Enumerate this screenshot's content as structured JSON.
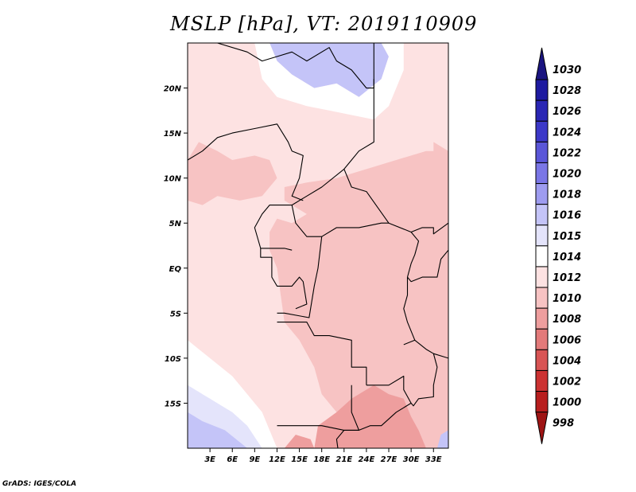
{
  "chart_data": {
    "type": "heatmap",
    "title": "MSLP [hPa], VT: 2019110909",
    "variable": "MSLP",
    "units": "hPa",
    "valid_time": "2019110909",
    "xlabel": "",
    "ylabel": "",
    "lon_range": [
      0,
      35
    ],
    "lat_range": [
      -20,
      25
    ],
    "x_ticks": [
      {
        "value": 3,
        "label": "3E"
      },
      {
        "value": 6,
        "label": "6E"
      },
      {
        "value": 9,
        "label": "9E"
      },
      {
        "value": 12,
        "label": "12E"
      },
      {
        "value": 15,
        "label": "15E"
      },
      {
        "value": 18,
        "label": "18E"
      },
      {
        "value": 21,
        "label": "21E"
      },
      {
        "value": 24,
        "label": "24E"
      },
      {
        "value": 27,
        "label": "27E"
      },
      {
        "value": 30,
        "label": "30E"
      },
      {
        "value": 33,
        "label": "33E"
      }
    ],
    "y_ticks": [
      {
        "value": 20,
        "label": "20N"
      },
      {
        "value": 15,
        "label": "15N"
      },
      {
        "value": 10,
        "label": "10N"
      },
      {
        "value": 5,
        "label": "5N"
      },
      {
        "value": 0,
        "label": "EQ"
      },
      {
        "value": -5,
        "label": "5S"
      },
      {
        "value": -10,
        "label": "10S"
      },
      {
        "value": -15,
        "label": "15S"
      }
    ],
    "colorbar": [
      {
        "label": "1030",
        "color": "#1a1480"
      },
      {
        "label": "1028",
        "color": "#1e1aa0"
      },
      {
        "label": "1026",
        "color": "#2a26b4"
      },
      {
        "label": "1024",
        "color": "#3c38c8"
      },
      {
        "label": "1022",
        "color": "#5a56d8"
      },
      {
        "label": "1020",
        "color": "#7a76e6"
      },
      {
        "label": "1018",
        "color": "#9e9cf0"
      },
      {
        "label": "1016",
        "color": "#c4c4f8"
      },
      {
        "label": "1015",
        "color": "#e4e4fb"
      },
      {
        "label": "1014",
        "color": "#ffffff"
      },
      {
        "label": "1012",
        "color": "#fde2e2"
      },
      {
        "label": "1010",
        "color": "#f7c3c3"
      },
      {
        "label": "1008",
        "color": "#ee9e9e"
      },
      {
        "label": "1006",
        "color": "#e37a7a"
      },
      {
        "label": "1004",
        "color": "#d85454"
      },
      {
        "label": "1002",
        "color": "#cc3232"
      },
      {
        "label": "1000",
        "color": "#b81e1e"
      },
      {
        "label": "998",
        "color": "#9e1414"
      }
    ],
    "colorbar_extend": "both",
    "regions": [
      {
        "name": "blue-high-north",
        "value": 1016,
        "pts": [
          [
            14,
            25
          ],
          [
            26,
            25
          ],
          [
            27,
            23.5
          ],
          [
            26,
            21
          ],
          [
            23,
            19
          ],
          [
            20,
            20.5
          ],
          [
            17,
            20
          ],
          [
            14,
            21.5
          ],
          [
            12,
            23
          ],
          [
            11,
            25
          ]
        ]
      },
      {
        "name": "white-north",
        "value": 1014,
        "pts": [
          [
            11,
            25
          ],
          [
            12,
            23
          ],
          [
            14,
            21.5
          ],
          [
            17,
            20
          ],
          [
            20,
            20.5
          ],
          [
            23,
            19
          ],
          [
            26,
            21
          ],
          [
            27,
            23.5
          ],
          [
            26,
            25
          ],
          [
            29,
            25
          ],
          [
            29,
            22
          ],
          [
            27,
            18
          ],
          [
            25,
            16.5
          ],
          [
            22,
            17
          ],
          [
            19,
            17.5
          ],
          [
            16,
            18
          ],
          [
            12,
            19
          ],
          [
            10,
            21
          ],
          [
            9,
            25
          ]
        ]
      },
      {
        "name": "pink-north-east",
        "value": 1010,
        "pts": [
          [
            33,
            14
          ],
          [
            35,
            13
          ],
          [
            35,
            8
          ],
          [
            33.5,
            8.5
          ],
          [
            33,
            11
          ]
        ]
      },
      {
        "name": "pink-west-sahel",
        "value": 1010,
        "pts": [
          [
            0,
            12
          ],
          [
            1.5,
            14
          ],
          [
            4,
            13
          ],
          [
            6,
            12
          ],
          [
            9,
            12.5
          ],
          [
            11,
            12
          ],
          [
            12,
            10
          ],
          [
            10,
            8
          ],
          [
            7,
            7.5
          ],
          [
            4,
            8
          ],
          [
            2,
            7
          ],
          [
            0,
            7.5
          ]
        ]
      },
      {
        "name": "pink-central",
        "value": 1010,
        "pts": [
          [
            13,
            9
          ],
          [
            16,
            9.5
          ],
          [
            20,
            10
          ],
          [
            24,
            11
          ],
          [
            28,
            12
          ],
          [
            32,
            13
          ],
          [
            35,
            13
          ],
          [
            35,
            -20
          ],
          [
            26,
            -20
          ],
          [
            24,
            -17
          ],
          [
            20,
            -16
          ],
          [
            18,
            -14
          ],
          [
            17,
            -11
          ],
          [
            15,
            -8
          ],
          [
            13,
            -6
          ],
          [
            12.5,
            -3
          ],
          [
            12,
            0
          ],
          [
            11,
            2
          ],
          [
            11,
            4
          ],
          [
            12,
            5.5
          ],
          [
            14,
            5
          ],
          [
            16,
            6
          ],
          [
            13,
            7.5
          ]
        ]
      },
      {
        "name": "salmon-south",
        "value": 1008,
        "pts": [
          [
            17,
            -20
          ],
          [
            17.5,
            -17.5
          ],
          [
            20,
            -16
          ],
          [
            22,
            -14.5
          ],
          [
            25,
            -13
          ],
          [
            27,
            -14
          ],
          [
            29,
            -14.5
          ],
          [
            30,
            -16.5
          ],
          [
            31,
            -18
          ],
          [
            32,
            -20
          ]
        ]
      },
      {
        "name": "salmon-south-west",
        "value": 1008,
        "pts": [
          [
            13,
            -20
          ],
          [
            14.5,
            -18.5
          ],
          [
            16.5,
            -19
          ],
          [
            17,
            -20
          ]
        ]
      },
      {
        "name": "white-south-west",
        "value": 1014,
        "pts": [
          [
            0,
            -8
          ],
          [
            3,
            -10
          ],
          [
            6,
            -12
          ],
          [
            8,
            -14
          ],
          [
            10,
            -16
          ],
          [
            12,
            -20
          ],
          [
            0,
            -20
          ]
        ]
      },
      {
        "name": "light-blue-south-west",
        "value": 1015,
        "pts": [
          [
            0,
            -13
          ],
          [
            3,
            -14.5
          ],
          [
            6,
            -16
          ],
          [
            8,
            -17.5
          ],
          [
            10,
            -20
          ],
          [
            0,
            -20
          ]
        ]
      },
      {
        "name": "blue-south-west",
        "value": 1016,
        "pts": [
          [
            0,
            -16
          ],
          [
            2,
            -17
          ],
          [
            5,
            -18
          ],
          [
            8,
            -20
          ],
          [
            0,
            -20
          ]
        ]
      },
      {
        "name": "blue-south-east",
        "value": 1016,
        "pts": [
          [
            33.5,
            -20
          ],
          [
            34,
            -18.5
          ],
          [
            35,
            -18
          ],
          [
            35,
            -20
          ]
        ]
      }
    ],
    "boundaries": [
      [
        [
          0,
          12
        ],
        [
          2,
          13
        ],
        [
          4,
          14.5
        ],
        [
          6,
          15
        ],
        [
          9,
          15.5
        ],
        [
          12,
          16
        ],
        [
          13.5,
          14
        ],
        [
          14,
          13
        ],
        [
          15.5,
          12.5
        ],
        [
          15,
          10
        ],
        [
          14,
          8
        ],
        [
          15.5,
          7.5
        ]
      ],
      [
        [
          4,
          25
        ],
        [
          8,
          24
        ],
        [
          10,
          23
        ],
        [
          12,
          23.5
        ],
        [
          14,
          24
        ],
        [
          16,
          23
        ],
        [
          19,
          24.5
        ],
        [
          20,
          23
        ],
        [
          22,
          22
        ],
        [
          24,
          20
        ],
        [
          25,
          20
        ],
        [
          25,
          25
        ]
      ],
      [
        [
          25,
          21
        ],
        [
          25,
          14
        ],
        [
          23,
          13
        ],
        [
          22,
          12
        ],
        [
          21,
          11
        ],
        [
          22,
          9
        ],
        [
          24,
          8.5
        ],
        [
          27,
          5
        ],
        [
          30,
          4
        ],
        [
          31.5,
          4.5
        ],
        [
          33,
          4.5
        ],
        [
          33,
          3.8
        ],
        [
          35,
          5
        ]
      ],
      [
        [
          21,
          11
        ],
        [
          18,
          9
        ],
        [
          16,
          8
        ],
        [
          14,
          7
        ],
        [
          14.5,
          5
        ],
        [
          16,
          3.5
        ],
        [
          18,
          3.5
        ],
        [
          20,
          4.5
        ],
        [
          23,
          4.5
        ],
        [
          26,
          5
        ],
        [
          27,
          5
        ]
      ],
      [
        [
          14,
          7
        ],
        [
          11,
          7
        ],
        [
          10,
          6
        ],
        [
          9,
          4.5
        ],
        [
          9.8,
          2.2
        ],
        [
          11.3,
          2.2
        ],
        [
          13,
          2.2
        ],
        [
          14,
          2
        ]
      ],
      [
        [
          9.8,
          2.2
        ],
        [
          9.8,
          1.2
        ],
        [
          11.3,
          1.2
        ],
        [
          11.3,
          -1
        ],
        [
          12,
          -2
        ],
        [
          14,
          -2
        ],
        [
          15,
          -1
        ],
        [
          15.5,
          -1.5
        ],
        [
          16,
          -4
        ],
        [
          14.5,
          -4.5
        ]
      ],
      [
        [
          18,
          3.5
        ],
        [
          17.5,
          0
        ],
        [
          17,
          -2
        ],
        [
          16.3,
          -5.5
        ],
        [
          13,
          -5
        ],
        [
          12,
          -5
        ]
      ],
      [
        [
          12,
          -6
        ],
        [
          16,
          -6
        ],
        [
          17,
          -7.5
        ],
        [
          19,
          -7.5
        ],
        [
          22,
          -8
        ],
        [
          22,
          -11
        ],
        [
          24,
          -11
        ],
        [
          24,
          -13
        ]
      ],
      [
        [
          22,
          -13
        ],
        [
          22,
          -16
        ],
        [
          23,
          -18
        ],
        [
          21,
          -18
        ],
        [
          20,
          -19
        ],
        [
          20.5,
          -22
        ],
        [
          18,
          -22
        ]
      ],
      [
        [
          12,
          -17.5
        ],
        [
          14,
          -17.5
        ],
        [
          18,
          -17.5
        ],
        [
          21,
          -18
        ],
        [
          23,
          -18
        ],
        [
          24.5,
          -17.5
        ],
        [
          25.5,
          -17.5
        ]
      ],
      [
        [
          24,
          -13
        ],
        [
          27,
          -13
        ],
        [
          29,
          -12
        ],
        [
          29,
          -13.5
        ],
        [
          30,
          -15
        ],
        [
          28,
          -16
        ],
        [
          26,
          -17.5
        ],
        [
          25.5,
          -17.5
        ]
      ],
      [
        [
          29,
          -8.5
        ],
        [
          30.5,
          -8
        ],
        [
          32,
          -9
        ],
        [
          33,
          -9.5
        ],
        [
          33.5,
          -11
        ],
        [
          33,
          -13
        ],
        [
          33,
          -14.3
        ],
        [
          31,
          -14.5
        ],
        [
          30.3,
          -15.3
        ],
        [
          30,
          -15
        ]
      ],
      [
        [
          33,
          -9.5
        ],
        [
          35,
          -10
        ]
      ],
      [
        [
          29.5,
          -1
        ],
        [
          29.5,
          -3
        ],
        [
          29,
          -4.5
        ],
        [
          29.5,
          -6
        ],
        [
          30.5,
          -8
        ]
      ],
      [
        [
          29.5,
          -1
        ],
        [
          30,
          -1.5
        ],
        [
          31.5,
          -1
        ],
        [
          33.5,
          -1
        ],
        [
          34,
          1
        ],
        [
          35,
          2
        ]
      ],
      [
        [
          30,
          4
        ],
        [
          31,
          3
        ],
        [
          30.5,
          1.5
        ],
        [
          30,
          0.5
        ],
        [
          29.5,
          -1
        ]
      ]
    ]
  }
}
